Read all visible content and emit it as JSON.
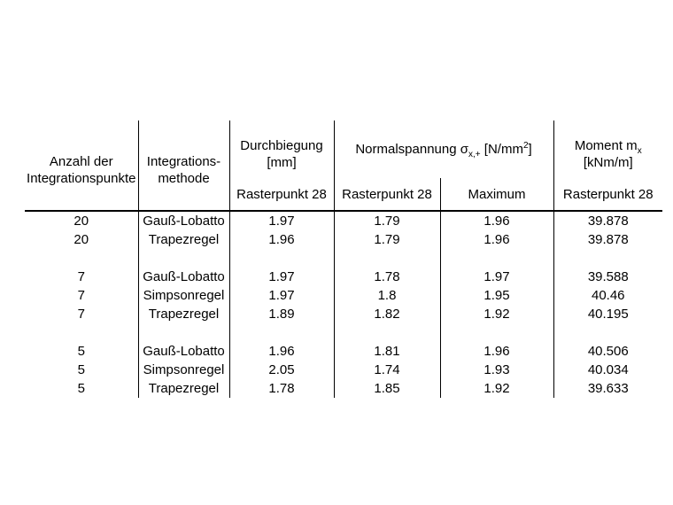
{
  "table": {
    "header": {
      "anzahl": {
        "l1": "Anzahl der",
        "l2": "Integrationspunkte"
      },
      "methode": {
        "l1": "Integrations-",
        "l2": "methode"
      },
      "durchbiegung": {
        "l1": "Durchbiegung",
        "l2": "[mm]",
        "sub": "Rasterpunkt 28"
      },
      "normalspannung": {
        "prefix": "Normalspannung σ",
        "subscript": "x,+",
        "mid": " [N/mm",
        "superscript": "2",
        "suffix": "]",
        "sub1": "Rasterpunkt 28",
        "sub2": "Maximum"
      },
      "moment": {
        "prefix": "Moment m",
        "subscript": "x",
        "l2": "[kNm/m]",
        "sub": "Rasterpunkt 28"
      }
    },
    "rows": [
      [
        "20",
        "Gauß-Lobatto",
        "1.97",
        "1.79",
        "1.96",
        "39.878"
      ],
      [
        "20",
        "Trapezregel",
        "1.96",
        "1.79",
        "1.96",
        "39.878"
      ],
      [
        "7",
        "Gauß-Lobatto",
        "1.97",
        "1.78",
        "1.97",
        "39.588"
      ],
      [
        "7",
        "Simpsonregel",
        "1.97",
        "1.8",
        "1.95",
        "40.46"
      ],
      [
        "7",
        "Trapezregel",
        "1.89",
        "1.82",
        "1.92",
        "40.195"
      ],
      [
        "5",
        "Gauß-Lobatto",
        "1.96",
        "1.81",
        "1.96",
        "40.506"
      ],
      [
        "5",
        "Simpsonregel",
        "2.05",
        "1.74",
        "1.93",
        "40.034"
      ],
      [
        "5",
        "Trapezregel",
        "1.78",
        "1.85",
        "1.92",
        "39.633"
      ]
    ]
  }
}
